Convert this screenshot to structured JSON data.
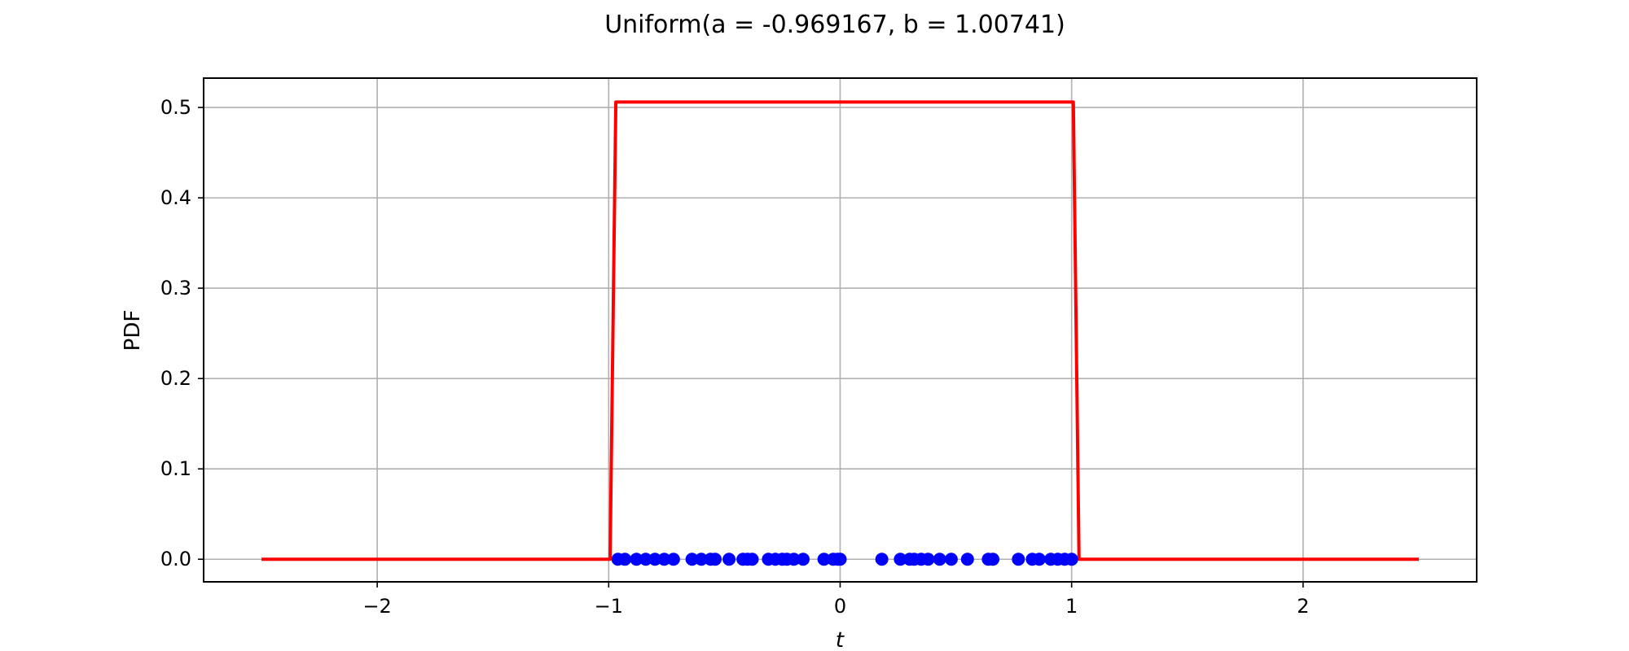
{
  "chart_data": {
    "type": "line",
    "title": "Uniform(a = -0.969167, b = 1.00741)",
    "xlabel": "t",
    "ylabel": "PDF",
    "xlim": [
      -2.75,
      2.75
    ],
    "ylim": [
      -0.025,
      0.5325
    ],
    "grid": true,
    "x_ticks": [
      -2,
      -1,
      0,
      1,
      2
    ],
    "x_tick_labels": [
      "−2",
      "−1",
      "0",
      "1",
      "2"
    ],
    "y_ticks": [
      0.0,
      0.1,
      0.2,
      0.3,
      0.4,
      0.5
    ],
    "y_tick_labels": [
      "0.0",
      "0.1",
      "0.2",
      "0.3",
      "0.4",
      "0.5"
    ],
    "series": [
      {
        "kind": "line",
        "color": "#ff0000",
        "x": [
          -2.5,
          -0.994,
          -0.969167,
          1.00741,
          1.032,
          2.5
        ],
        "y": [
          0.0,
          0.0,
          0.506,
          0.506,
          0.0,
          0.0
        ]
      },
      {
        "kind": "scatter",
        "color": "#0000ff",
        "x": [
          -0.96,
          -0.93,
          -0.88,
          -0.84,
          -0.8,
          -0.76,
          -0.72,
          -0.64,
          -0.6,
          -0.56,
          -0.54,
          -0.48,
          -0.42,
          -0.4,
          -0.38,
          -0.31,
          -0.28,
          -0.25,
          -0.23,
          -0.2,
          -0.16,
          -0.07,
          -0.03,
          -0.01,
          0.0,
          0.18,
          0.26,
          0.3,
          0.32,
          0.35,
          0.38,
          0.43,
          0.48,
          0.55,
          0.64,
          0.66,
          0.77,
          0.83,
          0.86,
          0.91,
          0.94,
          0.97,
          1.0
        ],
        "y": [
          0,
          0,
          0,
          0,
          0,
          0,
          0,
          0,
          0,
          0,
          0,
          0,
          0,
          0,
          0,
          0,
          0,
          0,
          0,
          0,
          0,
          0,
          0,
          0,
          0,
          0,
          0,
          0,
          0,
          0,
          0,
          0,
          0,
          0,
          0,
          0,
          0,
          0,
          0,
          0,
          0,
          0,
          0
        ]
      }
    ]
  }
}
